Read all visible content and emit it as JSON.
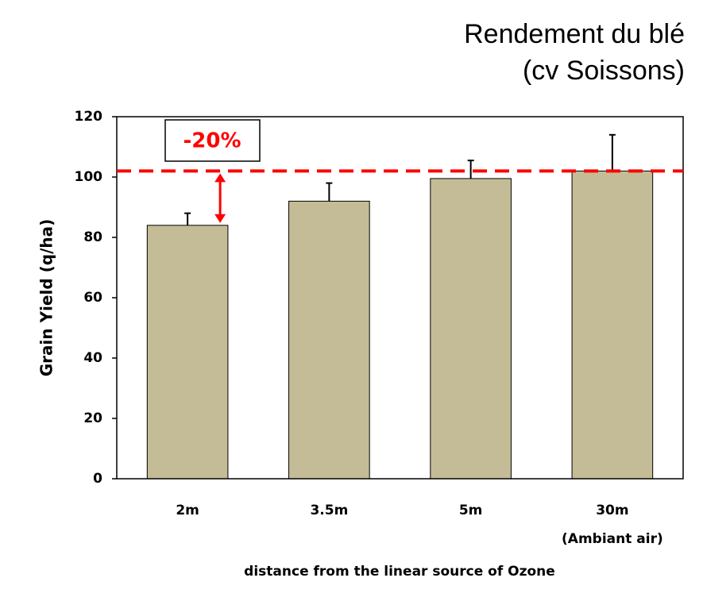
{
  "chart_data": {
    "type": "bar",
    "title": [
      "Rendement du blé",
      "(cv Soissons)"
    ],
    "ylabel": "Grain Yield (q/ha)",
    "xlabel": "distance from the linear source of Ozone",
    "categories": [
      "2m",
      "3.5m",
      "5m",
      "30m"
    ],
    "values": [
      84,
      92,
      99.5,
      102
    ],
    "errors": [
      4,
      6,
      6,
      12
    ],
    "color": "#c4bc96",
    "ylim": [
      0,
      120
    ],
    "yticks": [
      0,
      20,
      40,
      60,
      80,
      100,
      120
    ],
    "reference_line": {
      "value": 102,
      "color": "#ff0000"
    },
    "annotations": {
      "box": "-20%",
      "sublabel": "(Ambiant air)"
    }
  }
}
